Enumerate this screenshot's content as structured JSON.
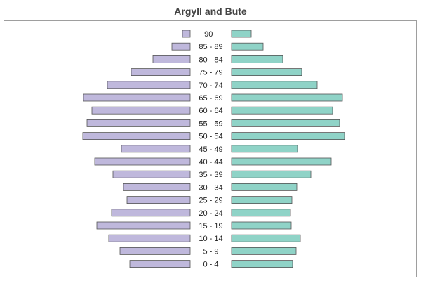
{
  "chart_data": {
    "type": "bar",
    "title": "Argyll and Bute",
    "orientation": "horizontal-butterfly",
    "categories": [
      "90+",
      "85 - 89",
      "80 - 84",
      "75 - 79",
      "70 - 74",
      "65 - 69",
      "60 - 64",
      "55 - 59",
      "50 - 54",
      "45 - 49",
      "40 - 44",
      "35 - 39",
      "30 - 34",
      "25 - 29",
      "20 - 24",
      "15 - 19",
      "10 - 14",
      "5 - 9",
      "0 - 4"
    ],
    "series": [
      {
        "side": "left",
        "color": "#bfb8dc",
        "values": [
          11,
          26,
          53,
          84,
          118,
          152,
          140,
          147,
          153,
          98,
          136,
          110,
          95,
          90,
          112,
          133,
          116,
          100,
          86
        ]
      },
      {
        "side": "right",
        "color": "#8fd3c7",
        "values": [
          28,
          45,
          73,
          100,
          122,
          158,
          144,
          154,
          161,
          94,
          142,
          113,
          93,
          86,
          84,
          85,
          98,
          92,
          87
        ]
      }
    ],
    "xlim": [
      0,
      165
    ],
    "axes_visible": false,
    "grid": false,
    "legend": "none"
  }
}
